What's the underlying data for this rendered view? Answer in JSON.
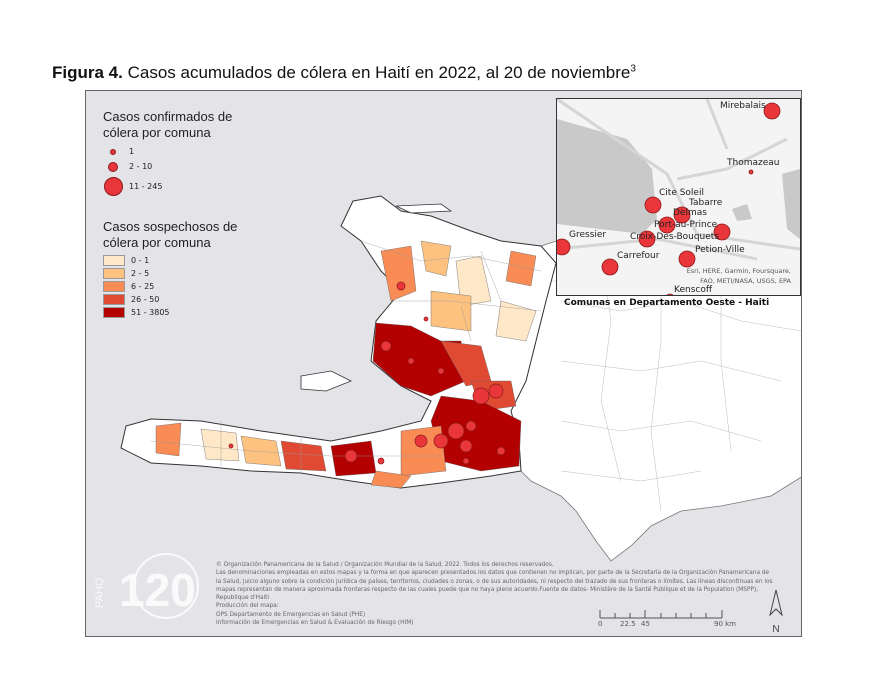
{
  "title": {
    "prefix": "Figura 4.",
    "text": " Casos acumulados de cólera en Haití en 2022, al 20 de noviembre",
    "superscript": "3"
  },
  "legend_confirmed": {
    "title_line1": "Casos confirmados de",
    "title_line2": "cólera por comuna",
    "items": [
      {
        "label": "1"
      },
      {
        "label": "2 - 10"
      },
      {
        "label": "11 - 245"
      }
    ],
    "color": "#e8363a"
  },
  "legend_suspected": {
    "title_line1": "Casos sospechosos de",
    "title_line2": "cólera por comuna",
    "items": [
      {
        "label": "0 - 1",
        "color": "#fee8c8"
      },
      {
        "label": "2 - 5",
        "color": "#fdc27f"
      },
      {
        "label": "6 - 25",
        "color": "#f98b55"
      },
      {
        "label": "26 - 50",
        "color": "#e04a33"
      },
      {
        "label": "51 - 3805",
        "color": "#b30000"
      }
    ]
  },
  "inset": {
    "caption": "Comunas en Departamento Oeste - Haiti",
    "labels": [
      "Mirebalais",
      "Thomazeau",
      "Cite Soleil",
      "Tabarre",
      "Delmas",
      "Port-au-Prince",
      "Croix-Des-Bouquets",
      "Petion-Ville",
      "Gressier",
      "Carrefour",
      "Kenscoff"
    ],
    "attribution_line1": "Esri, HERE, Garmin, Foursquare,",
    "attribution_line2": "FAO, METI/NASA, USGS, EPA"
  },
  "footer": {
    "lines": [
      "© Organización Panamericana de la Salud / Organización Mundial de la Salud, 2022. Todos los derechos reservados.",
      "Las denominaciones empleadas en estos mapas y la forma en que aparecen presentados los datos que contienen no implican, por parte de la Secretaría de la Organización Panamericana de la Salud, juicio alguno sobre la condición jurídica de países,  territorios, ciudades o zonas, o de sus autoridades, ni respecto del trazado de sus fronteras o límites.  Las líneas discontinuas en los mapas representan de manera aproximada fronteras respecto de las cuales puede que no haya pleno acuerdo.Fuente de datos- Ministère de la Santé Publique et de la Population (MSPP), Republique d'Haiti",
      "Producción del mapa:",
      "OPS Departamento de Emergencias en Salud (PHE)",
      "Información de Emergencias en Salud & Evaluación de Riesgo (HIM)"
    ]
  },
  "scale": {
    "ticks": [
      "0",
      "22.5",
      "45",
      "90 km"
    ]
  },
  "north": {
    "label": "N"
  },
  "logo": {
    "text": "PAHO 120"
  }
}
